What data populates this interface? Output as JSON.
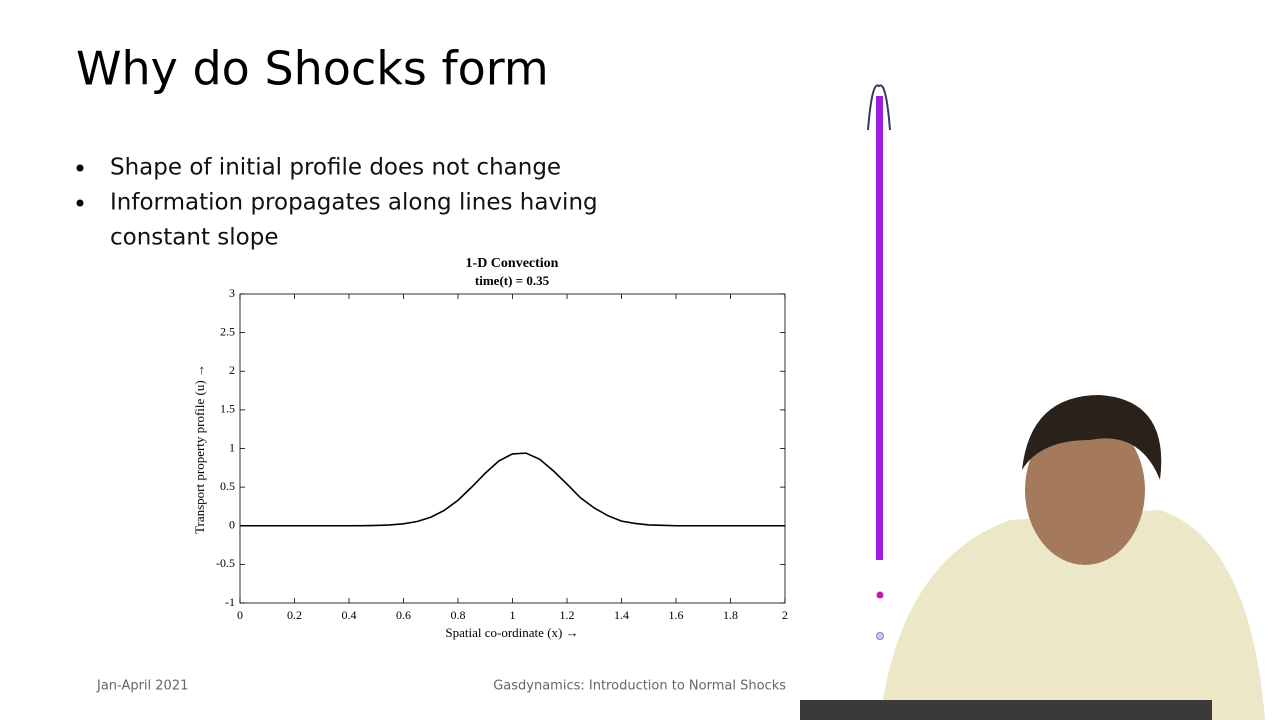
{
  "slide": {
    "title": "Why do Shocks form",
    "bullets": [
      "Shape of initial profile does not change",
      "Information propagates along lines having",
      "constant slope"
    ],
    "footer_left": "Jan-April 2021",
    "footer_right": "Gasdynamics: Introduction to Normal Shocks"
  },
  "chart_data": {
    "type": "line",
    "title": "1-D Convection",
    "subtitle": "time(t) = 0.35",
    "x_label": "Spatial co-ordinate (x) →",
    "y_label": "Transport property profile (u) →",
    "x": [
      0,
      0.05,
      0.1,
      0.15,
      0.2,
      0.25,
      0.3,
      0.35,
      0.4,
      0.45,
      0.5,
      0.55,
      0.6,
      0.65,
      0.7,
      0.75,
      0.8,
      0.85,
      0.9,
      0.95,
      1.0,
      1.05,
      1.1,
      1.15,
      1.2,
      1.25,
      1.3,
      1.35,
      1.4,
      1.45,
      1.5,
      1.55,
      1.6,
      1.65,
      1.7,
      1.75,
      1.8,
      1.85,
      1.9,
      1.95,
      2.0
    ],
    "series": [
      {
        "color": "#000000",
        "values": [
          0,
          0,
          0,
          0,
          0,
          0,
          0,
          0,
          0,
          0.001,
          0.004,
          0.01,
          0.025,
          0.055,
          0.11,
          0.2,
          0.33,
          0.5,
          0.68,
          0.84,
          0.93,
          0.94,
          0.86,
          0.71,
          0.54,
          0.36,
          0.23,
          0.13,
          0.06,
          0.03,
          0.01,
          0.005,
          0,
          0,
          0,
          0,
          0,
          0,
          0,
          0,
          0
        ]
      }
    ],
    "xlim": [
      0,
      2
    ],
    "ylim": [
      -1,
      3
    ],
    "xticks": [
      0,
      0.2,
      0.4,
      0.6,
      0.8,
      1,
      1.2,
      1.4,
      1.6,
      1.8,
      2
    ],
    "yticks": [
      -1,
      -0.5,
      0,
      0.5,
      1,
      1.5,
      2,
      2.5,
      3
    ],
    "grid": false
  }
}
